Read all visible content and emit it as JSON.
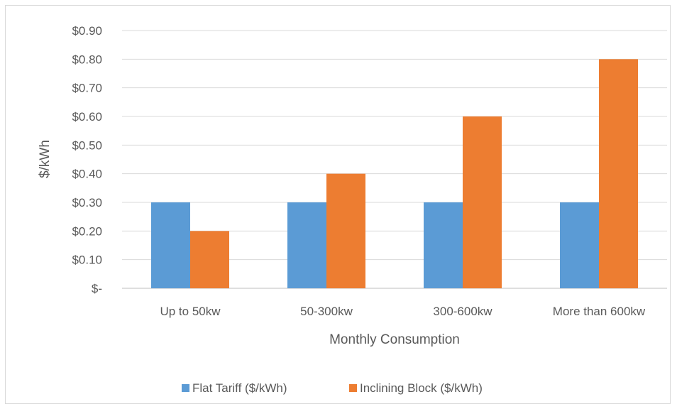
{
  "chart_data": {
    "type": "bar",
    "title": "",
    "xlabel": "Monthly Consumption",
    "ylabel": "$/kWh",
    "categories": [
      "Up to 50kw",
      "50-300kw",
      "300-600kw",
      "More than 600kw"
    ],
    "series": [
      {
        "name": "Flat Tariff ($/kWh)",
        "values": [
          0.3,
          0.3,
          0.3,
          0.3
        ],
        "color": "#5b9bd5"
      },
      {
        "name": "Inclining Block ($/kWh)",
        "values": [
          0.2,
          0.4,
          0.6,
          0.8
        ],
        "color": "#ed7d31"
      }
    ],
    "ylim": [
      0,
      0.9
    ],
    "y_ticks": [
      0,
      0.1,
      0.2,
      0.3,
      0.4,
      0.5,
      0.6,
      0.7,
      0.8,
      0.9
    ],
    "y_tick_labels": [
      "$-",
      "$0.10",
      "$0.20",
      "$0.30",
      "$0.40",
      "$0.50",
      "$0.60",
      "$0.70",
      "$0.80",
      "$0.90"
    ],
    "grid": true,
    "legend_position": "bottom"
  }
}
